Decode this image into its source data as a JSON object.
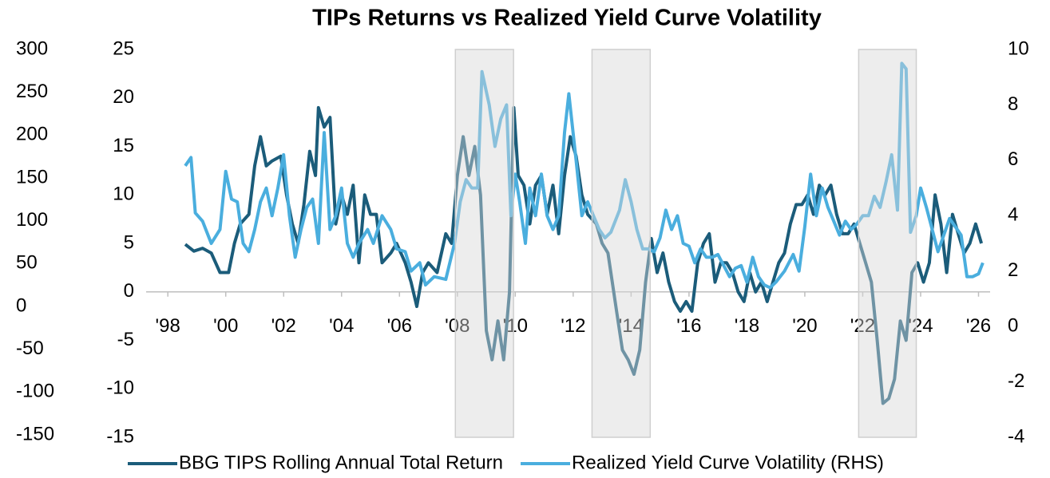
{
  "chart_data": {
    "type": "line",
    "title": "TIPs Returns vs Realized Yield Curve Volatility",
    "xlim": [
      1997.25,
      2026.4
    ],
    "xticks": [
      {
        "value": 1998,
        "label": "'98"
      },
      {
        "value": 2000,
        "label": "'00"
      },
      {
        "value": 2002,
        "label": "'02"
      },
      {
        "value": 2004,
        "label": "'04"
      },
      {
        "value": 2006,
        "label": "'06"
      },
      {
        "value": 2008,
        "label": "'08"
      },
      {
        "value": 2010,
        "label": "'10"
      },
      {
        "value": 2012,
        "label": "'12"
      },
      {
        "value": 2014,
        "label": "'14"
      },
      {
        "value": 2016,
        "label": "'16"
      },
      {
        "value": 2018,
        "label": "'18"
      },
      {
        "value": 2020,
        "label": "'20"
      },
      {
        "value": 2022,
        "label": "'22"
      },
      {
        "value": 2024,
        "label": "'24"
      },
      {
        "value": 2026,
        "label": "'26"
      }
    ],
    "ylim": [
      -15,
      25
    ],
    "yticks": [
      -15,
      -10,
      -5,
      0,
      5,
      10,
      15,
      20,
      25
    ],
    "y2lim": [
      -4,
      10
    ],
    "y2ticks": [
      -4,
      -2,
      0,
      2,
      4,
      6,
      8,
      10
    ],
    "y3lim": [
      -150,
      300
    ],
    "y3ticks": [
      -150,
      -100,
      -50,
      0,
      50,
      100,
      150,
      200,
      250,
      300
    ],
    "shaded_ranges": [
      [
        2007.93,
        2009.94
      ],
      [
        2012.65,
        2014.66
      ],
      [
        2021.86,
        2023.85
      ]
    ],
    "series": [
      {
        "name": "BBG TIPS Rolling Annual Total Return",
        "color": "#1b5c7a",
        "axis": "y",
        "x": [
          1998.6,
          1998.9,
          1999.2,
          1999.5,
          1999.8,
          2000.1,
          2000.3,
          2000.5,
          2000.8,
          2001.0,
          2001.2,
          2001.4,
          2001.6,
          2001.9,
          2002.1,
          2002.3,
          2002.5,
          2002.7,
          2002.9,
          2003.1,
          2003.2,
          2003.4,
          2003.6,
          2003.8,
          2004.0,
          2004.2,
          2004.4,
          2004.6,
          2004.8,
          2005.0,
          2005.2,
          2005.4,
          2005.7,
          2005.9,
          2006.2,
          2006.4,
          2006.6,
          2006.8,
          2007.0,
          2007.3,
          2007.6,
          2007.8,
          2008.0,
          2008.2,
          2008.4,
          2008.6,
          2008.8,
          2009.0,
          2009.2,
          2009.4,
          2009.6,
          2009.8,
          2009.95,
          2010.1,
          2010.3,
          2010.5,
          2010.7,
          2010.9,
          2011.1,
          2011.3,
          2011.5,
          2011.7,
          2011.9,
          2012.1,
          2012.3,
          2012.5,
          2012.8,
          2013.0,
          2013.2,
          2013.5,
          2013.7,
          2013.9,
          2014.1,
          2014.3,
          2014.5,
          2014.7,
          2014.9,
          2015.1,
          2015.3,
          2015.5,
          2015.7,
          2015.9,
          2016.1,
          2016.3,
          2016.5,
          2016.7,
          2016.9,
          2017.1,
          2017.3,
          2017.5,
          2017.7,
          2017.9,
          2018.1,
          2018.3,
          2018.5,
          2018.7,
          2018.9,
          2019.1,
          2019.3,
          2019.5,
          2019.7,
          2019.9,
          2020.1,
          2020.3,
          2020.5,
          2020.7,
          2020.9,
          2021.1,
          2021.3,
          2021.5,
          2021.7,
          2021.9,
          2022.1,
          2022.3,
          2022.5,
          2022.7,
          2022.9,
          2023.1,
          2023.3,
          2023.5,
          2023.7,
          2023.9,
          2024.1,
          2024.3,
          2024.5,
          2024.7,
          2024.9,
          2025.1,
          2025.3,
          2025.5,
          2025.7,
          2025.9,
          2026.1
        ],
        "values": [
          4.9,
          4.2,
          4.5,
          4,
          2,
          2,
          5,
          7,
          8,
          13,
          16,
          13,
          13.5,
          14,
          10,
          7,
          5,
          9,
          14.5,
          12,
          19,
          17,
          18,
          7,
          10,
          8,
          11,
          3,
          10,
          8,
          8,
          3,
          4,
          5,
          3,
          1,
          -1.5,
          2,
          3,
          2,
          6,
          5,
          12,
          16,
          12,
          15,
          10,
          -4,
          -7,
          -3,
          -7,
          0,
          19,
          12,
          11,
          7,
          11,
          12,
          8,
          11,
          6,
          12,
          16,
          14,
          10,
          8,
          7,
          5,
          4,
          -2,
          -6,
          -7,
          -8.5,
          -6,
          1,
          5.5,
          2,
          4,
          1,
          -1,
          -2,
          -1,
          -2,
          3,
          5,
          6,
          1,
          3,
          3,
          2,
          0,
          -1,
          2,
          0,
          1,
          -1,
          1,
          3,
          4,
          7,
          9,
          9,
          10,
          8,
          11,
          10,
          11,
          8,
          6,
          6,
          7,
          5,
          3,
          1,
          -5,
          -11.5,
          -11,
          -9,
          -3,
          -5,
          2,
          3,
          1,
          3,
          10,
          7,
          2,
          8,
          6,
          4,
          5,
          7,
          5
        ]
      },
      {
        "name": "Realized Yield Curve Volatility (RHS)",
        "color": "#4aaede",
        "axis": "y2",
        "x": [
          1998.6,
          1998.8,
          1998.95,
          1999.2,
          1999.5,
          1999.8,
          2000.0,
          2000.2,
          2000.4,
          2000.6,
          2000.8,
          2001.0,
          2001.2,
          2001.4,
          2001.6,
          2001.8,
          2002.0,
          2002.2,
          2002.4,
          2002.6,
          2002.8,
          2003.0,
          2003.2,
          2003.4,
          2003.6,
          2003.8,
          2004.0,
          2004.2,
          2004.4,
          2004.6,
          2004.9,
          2005.1,
          2005.4,
          2005.7,
          2005.9,
          2006.2,
          2006.4,
          2006.7,
          2006.9,
          2007.2,
          2007.6,
          2007.9,
          2008.1,
          2008.3,
          2008.5,
          2008.7,
          2008.85,
          2009.1,
          2009.3,
          2009.5,
          2009.7,
          2009.85,
          2010.0,
          2010.15,
          2010.35,
          2010.5,
          2010.7,
          2010.9,
          2011.1,
          2011.3,
          2011.5,
          2011.7,
          2011.85,
          2012.1,
          2012.3,
          2012.5,
          2012.7,
          2012.9,
          2013.1,
          2013.3,
          2013.6,
          2013.8,
          2014.0,
          2014.2,
          2014.4,
          2014.6,
          2014.8,
          2015.0,
          2015.2,
          2015.4,
          2015.6,
          2015.8,
          2016.0,
          2016.2,
          2016.4,
          2016.6,
          2016.8,
          2017.0,
          2017.2,
          2017.4,
          2017.6,
          2017.8,
          2018.0,
          2018.2,
          2018.4,
          2018.6,
          2018.8,
          2019.0,
          2019.3,
          2019.6,
          2019.8,
          2020.0,
          2020.2,
          2020.4,
          2020.6,
          2020.8,
          2021.0,
          2021.2,
          2021.4,
          2021.6,
          2021.8,
          2022.0,
          2022.2,
          2022.4,
          2022.6,
          2022.8,
          2023.0,
          2023.2,
          2023.35,
          2023.5,
          2023.65,
          2023.85,
          2024.0,
          2024.2,
          2024.4,
          2024.6,
          2024.8,
          2025.0,
          2025.2,
          2025.4,
          2025.6,
          2025.8,
          2026.0,
          2026.15
        ],
        "values": [
          5.8,
          6.1,
          4.1,
          3.8,
          3,
          3.5,
          5.6,
          4.6,
          4.5,
          3,
          2.7,
          3.5,
          4.5,
          5,
          4,
          5,
          6.2,
          4,
          2.5,
          3.5,
          4.3,
          4.6,
          3,
          7,
          3.5,
          4,
          5,
          3,
          2.5,
          3,
          3.5,
          3,
          4,
          3.5,
          2.8,
          2.7,
          2,
          2.3,
          1.5,
          1.8,
          1.7,
          3,
          4.5,
          5.3,
          5,
          5,
          9.2,
          8,
          6.5,
          7.5,
          8,
          4,
          5.5,
          4.5,
          3,
          5,
          4,
          5.5,
          4,
          3.5,
          4,
          7,
          8.4,
          6,
          4,
          4.5,
          4,
          3.5,
          3.2,
          3.4,
          4.2,
          5.3,
          4.5,
          3.5,
          2.8,
          2.8,
          2.7,
          3.2,
          4.2,
          3.5,
          4,
          3,
          2.9,
          2.3,
          2.8,
          2.5,
          2.5,
          2.6,
          2.2,
          1.8,
          2.1,
          2.2,
          1.6,
          2.5,
          1.8,
          1.5,
          1.4,
          1.6,
          2,
          2.6,
          2,
          3.6,
          5.5,
          4,
          5,
          4.3,
          3.8,
          3.3,
          3.8,
          3.5,
          3.7,
          4,
          4,
          4.7,
          4.3,
          5.2,
          6.2,
          4.2,
          9.5,
          9.3,
          3.4,
          4,
          5,
          4.3,
          3.5,
          2.7,
          3.3,
          3.9,
          3.6,
          3.3,
          1.8,
          1.8,
          1.9,
          2.3
        ]
      }
    ]
  }
}
